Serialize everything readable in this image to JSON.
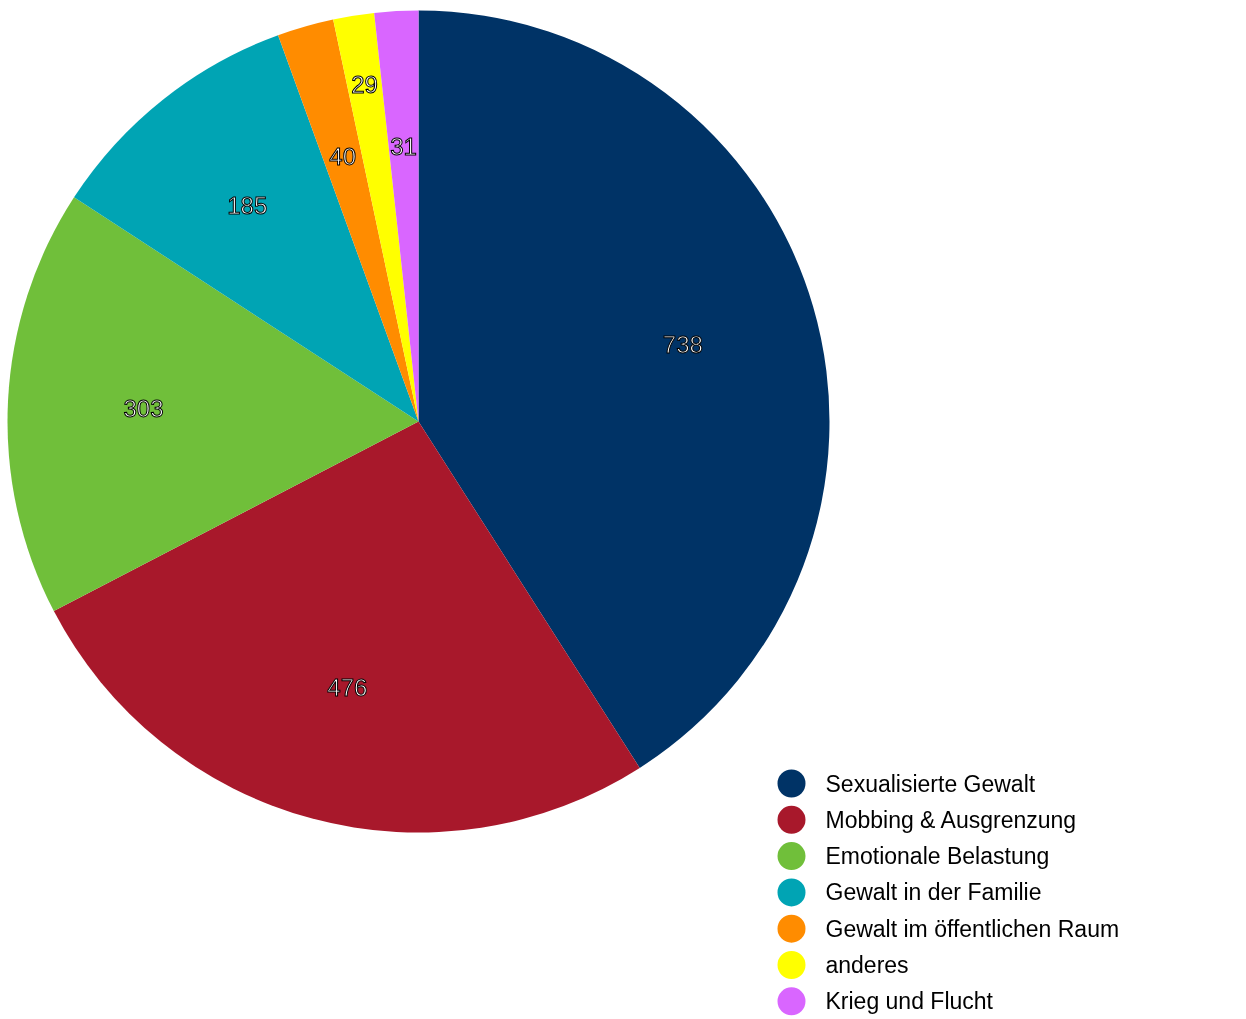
{
  "chart_data": {
    "type": "pie",
    "categories": [
      "Sexualisierte Gewalt",
      "Mobbing & Ausgrenzung",
      "Emotionale Belastung",
      "Gewalt in der Familie",
      "Gewalt im öffentlichen Raum",
      "anderes",
      "Krieg und Flucht"
    ],
    "values": [
      738,
      476,
      303,
      185,
      40,
      29,
      31
    ],
    "colors": [
      "#003366",
      "#a8182b",
      "#70bf3a",
      "#00a4b4",
      "#ff8c00",
      "#ffff00",
      "#d966ff"
    ],
    "data_labels": true,
    "legend": "bottom right"
  }
}
